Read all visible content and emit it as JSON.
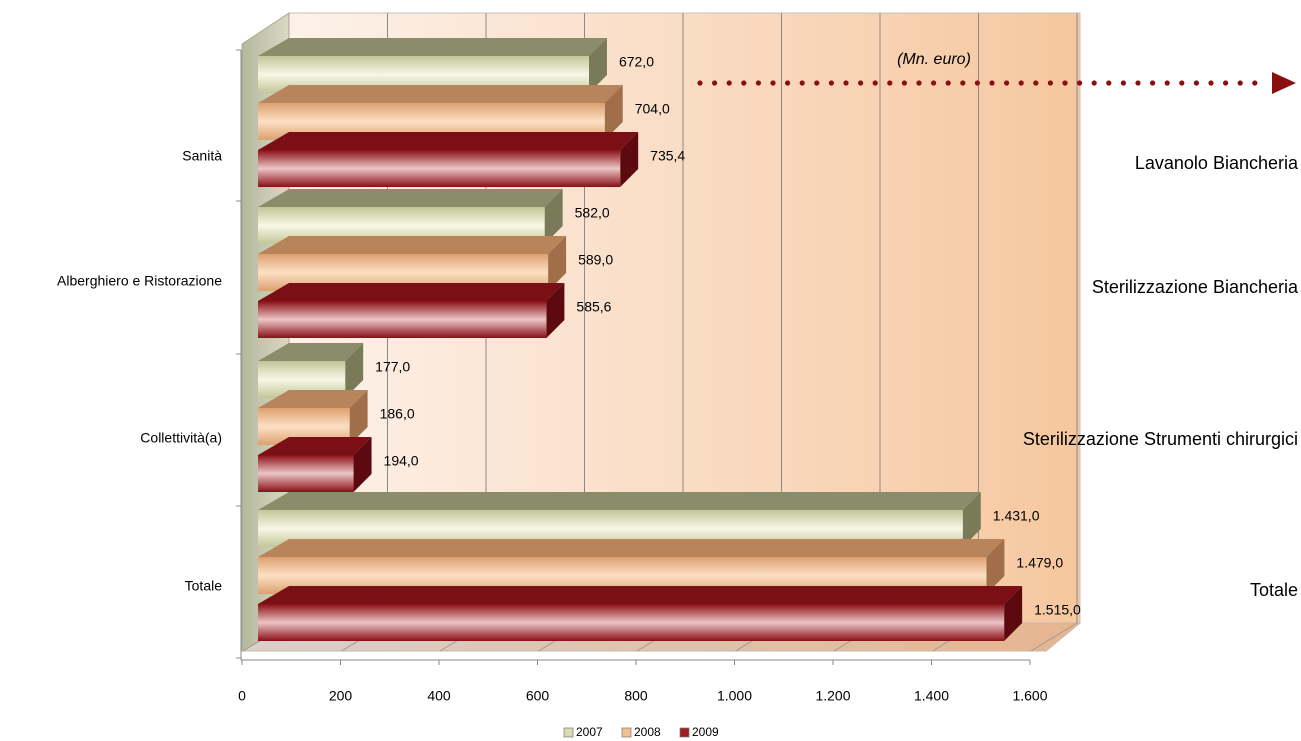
{
  "chart_data": {
    "type": "bar",
    "orientation": "horizontal",
    "style": "3d-clustered",
    "categories": [
      "Sanità",
      "Alberghiero e Ristorazione",
      "Collettività(a)",
      "Totale"
    ],
    "series": [
      {
        "name": "2007",
        "color": "#d8dcb0",
        "values": [
          672.0,
          582.0,
          177.0,
          1431.0
        ],
        "labels": [
          "672,0",
          "582,0",
          "177,0",
          "1.431,0"
        ]
      },
      {
        "name": "2008",
        "color": "#f0c090",
        "values": [
          704.0,
          589.0,
          186.0,
          1479.0
        ],
        "labels": [
          "704,0",
          "589,0",
          "186,0",
          "1.479,0"
        ]
      },
      {
        "name": "2009",
        "color": "#a01c24",
        "values": [
          735.4,
          585.6,
          194.0,
          1515.0
        ],
        "labels": [
          "735,4",
          "585,6",
          "194,0",
          "1.515,0"
        ]
      }
    ],
    "xlim": [
      0,
      1600
    ],
    "xticks": [
      0,
      200,
      400,
      600,
      800,
      1000,
      1200,
      1400,
      1600
    ],
    "xtick_labels": [
      "0",
      "200",
      "400",
      "600",
      "800",
      "1.000",
      "1.200",
      "1.400",
      "1.600"
    ],
    "unit_annotation": "(Mn. euro)",
    "right_labels": [
      "Lavanolo Biancheria",
      "Sterilizzazione Biancheria",
      "Sterilizzazione Strumenti chirurgici",
      "Totale"
    ],
    "legend_position": "bottom",
    "grid": true
  }
}
